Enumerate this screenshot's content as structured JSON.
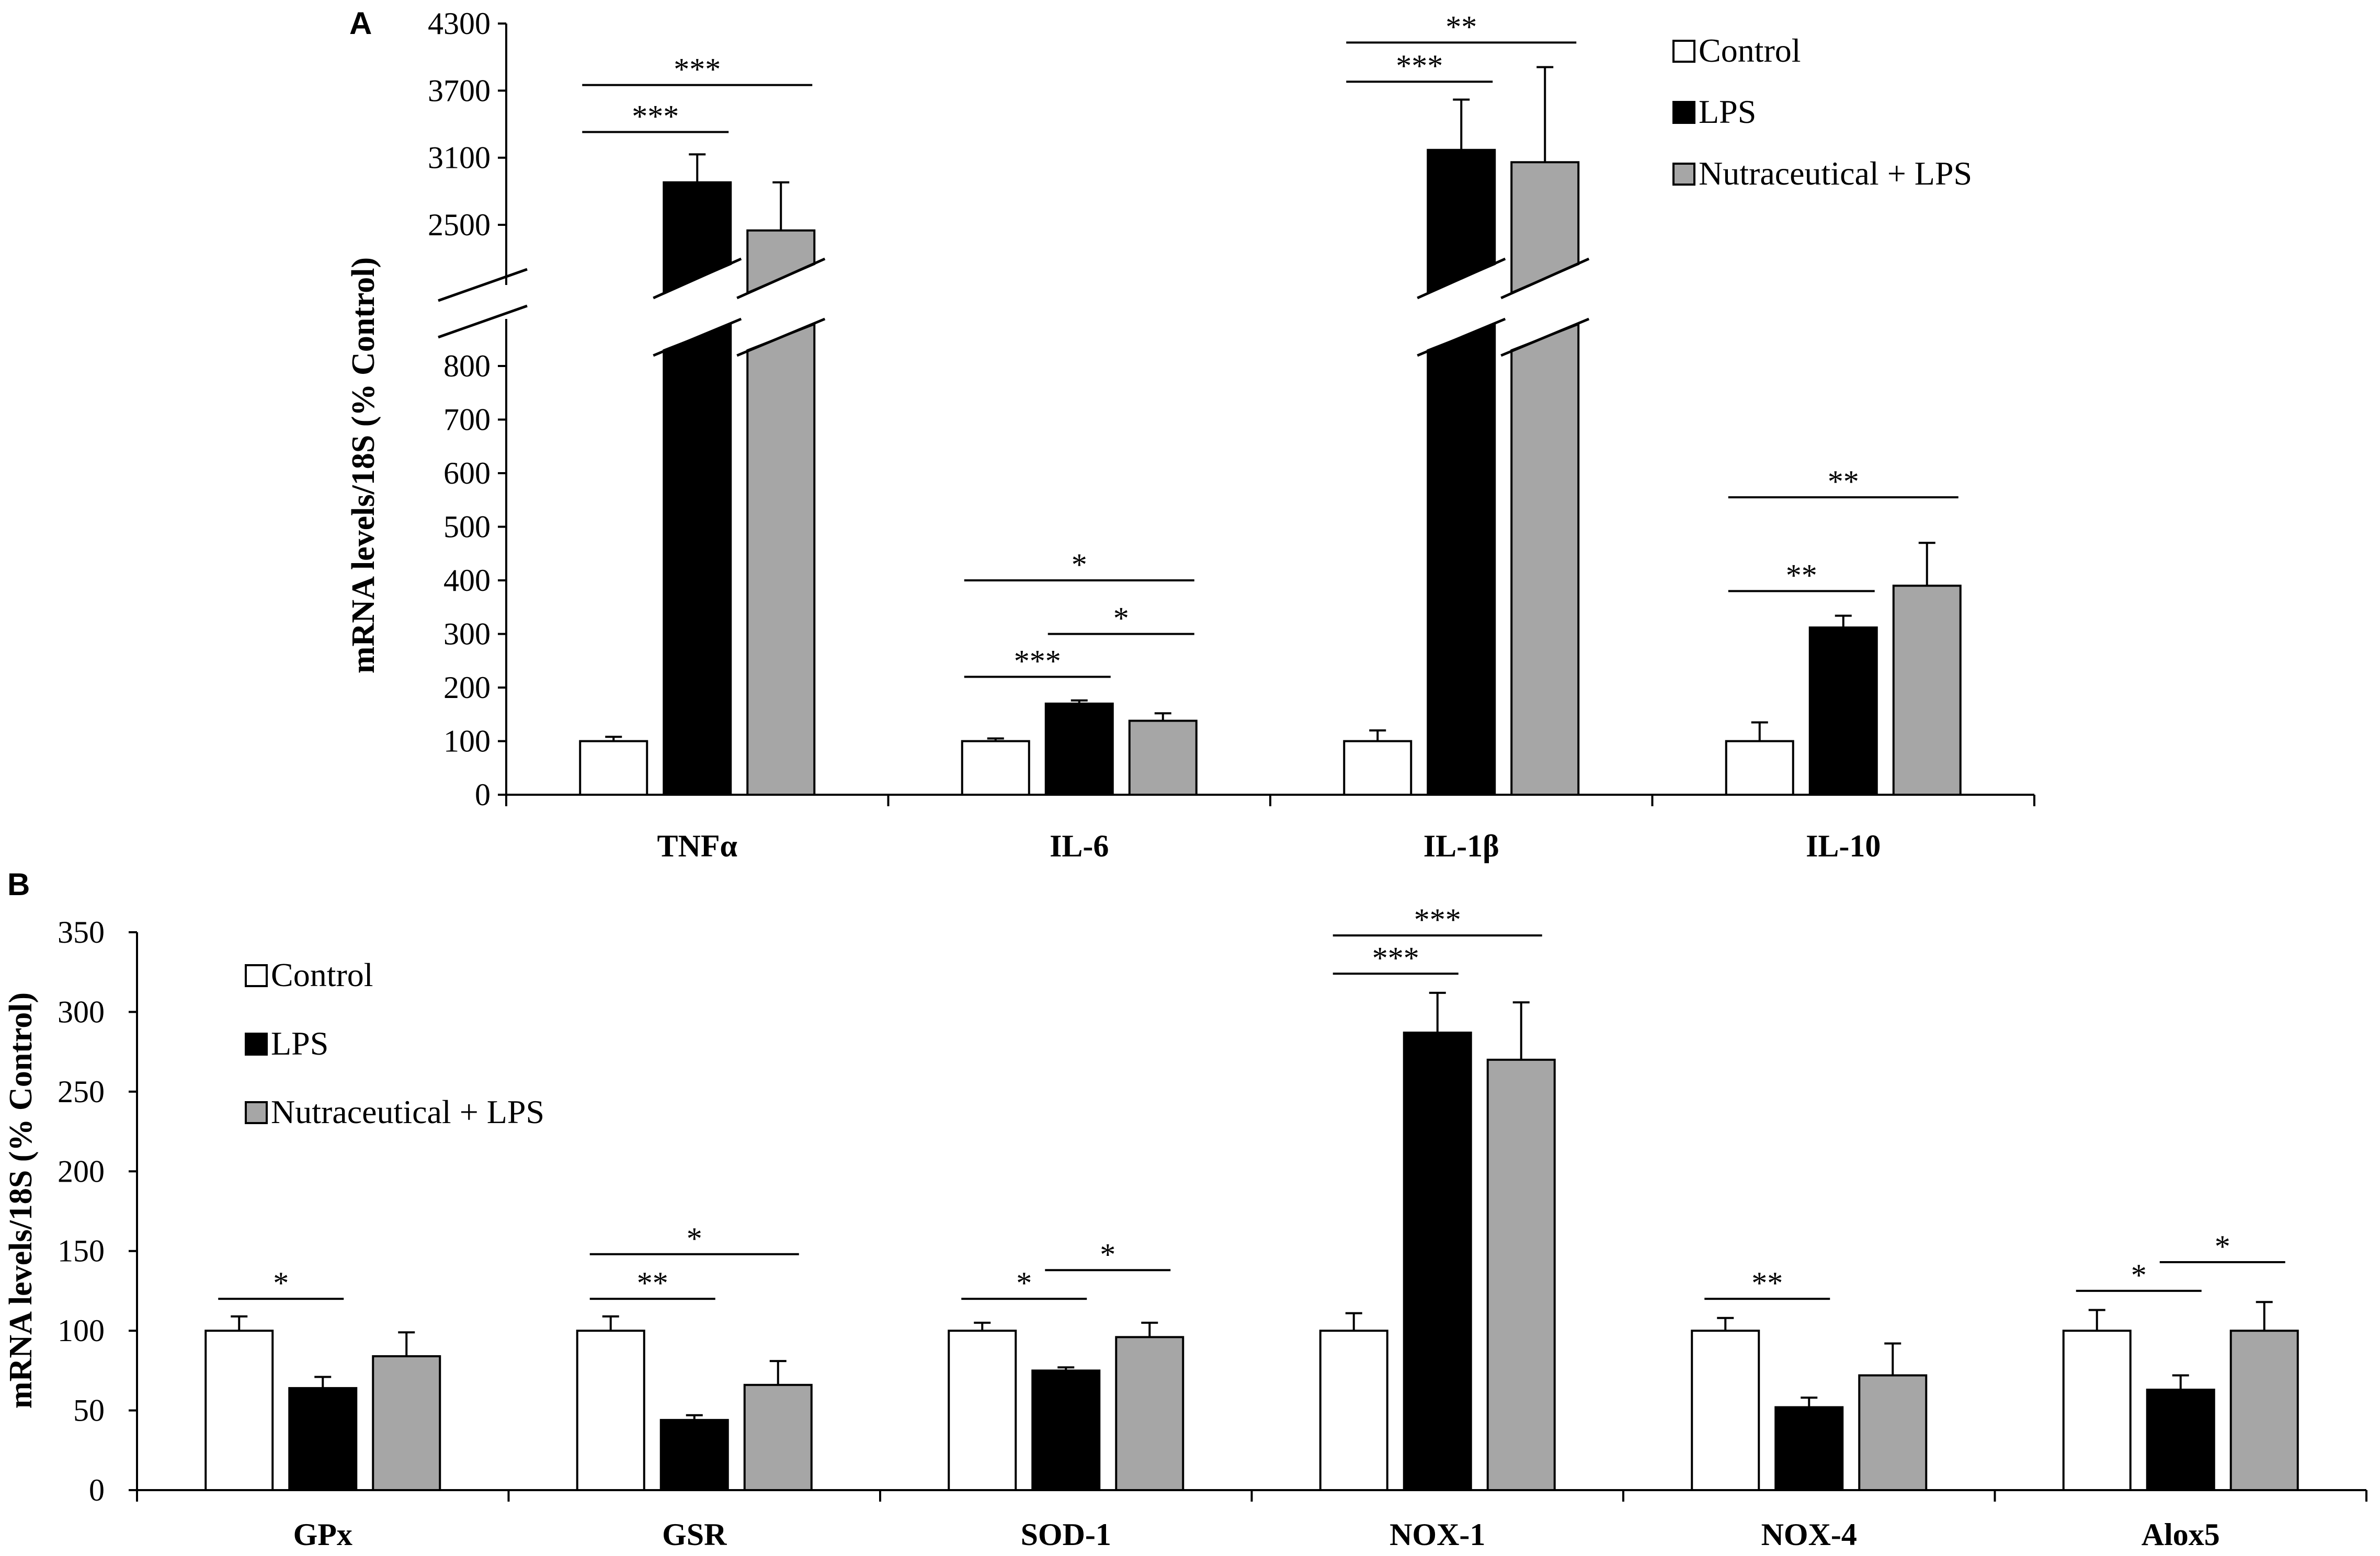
{
  "colors": {
    "control": "#ffffff",
    "lps": "#000000",
    "nutra": "#a6a6a6",
    "stroke": "#000000"
  },
  "legend": [
    "Control",
    "LPS",
    "Nutraceutical + LPS"
  ],
  "chart_data": [
    {
      "panel": "A",
      "type": "bar",
      "ylabel": "mRNA levels/18S (% Control)",
      "categories": [
        "TNFα",
        "IL-6",
        "IL-1β",
        "IL-10"
      ],
      "series": [
        {
          "name": "Control",
          "values": [
            100,
            100,
            100,
            100
          ],
          "errors": [
            8,
            5,
            20,
            35
          ]
        },
        {
          "name": "LPS",
          "values": [
            2880,
            170,
            3170,
            312
          ],
          "errors": [
            250,
            6,
            450,
            22
          ]
        },
        {
          "name": "Nutraceutical + LPS",
          "values": [
            2450,
            138,
            3060,
            390
          ],
          "errors": [
            430,
            14,
            850,
            80
          ]
        }
      ],
      "axis_break": {
        "lower_max": 800,
        "upper_min": 2500,
        "upper_max": 4300
      },
      "yticks_lower": [
        "0",
        "100",
        "200",
        "300",
        "400",
        "500",
        "600",
        "700",
        "800"
      ],
      "yticks_upper": [
        "2500",
        "3100",
        "3700",
        "4300"
      ],
      "significance": [
        {
          "category": 0,
          "from": 0,
          "to": 1,
          "label": "***",
          "y": 3330
        },
        {
          "category": 0,
          "from": 0,
          "to": 2,
          "label": "***",
          "y": 3750
        },
        {
          "category": 1,
          "from": 0,
          "to": 1,
          "label": "***",
          "y": 220
        },
        {
          "category": 1,
          "from": 1,
          "to": 2,
          "label": "*",
          "y": 300
        },
        {
          "category": 1,
          "from": 0,
          "to": 2,
          "label": "*",
          "y": 400
        },
        {
          "category": 2,
          "from": 0,
          "to": 1,
          "label": "***",
          "y": 3780
        },
        {
          "category": 2,
          "from": 0,
          "to": 2,
          "label": "**",
          "y": 4130
        },
        {
          "category": 3,
          "from": 0,
          "to": 1,
          "label": "**",
          "y": 380
        },
        {
          "category": 3,
          "from": 0,
          "to": 2,
          "label": "**",
          "y": 555
        }
      ]
    },
    {
      "panel": "B",
      "type": "bar",
      "ylabel": "mRNA levels/18S (% Control)",
      "categories": [
        "GPx",
        "GSR",
        "SOD-1",
        "NOX-1",
        "NOX-4",
        "Alox5"
      ],
      "ylim": [
        0,
        350
      ],
      "yticks": [
        "0",
        "50",
        "100",
        "150",
        "200",
        "250",
        "300",
        "350"
      ],
      "series": [
        {
          "name": "Control",
          "values": [
            100,
            100,
            100,
            100,
            100,
            100
          ],
          "errors": [
            9,
            9,
            5,
            11,
            8,
            13
          ]
        },
        {
          "name": "LPS",
          "values": [
            64,
            44,
            75,
            287,
            52,
            63
          ],
          "errors": [
            7,
            3,
            2,
            25,
            6,
            9
          ]
        },
        {
          "name": "Nutraceutical + LPS",
          "values": [
            84,
            66,
            96,
            270,
            72,
            100
          ],
          "errors": [
            15,
            15,
            9,
            36,
            20,
            18
          ]
        }
      ],
      "significance": [
        {
          "category": 0,
          "from": 0,
          "to": 1,
          "label": "*",
          "y": 120
        },
        {
          "category": 1,
          "from": 0,
          "to": 1,
          "label": "**",
          "y": 120
        },
        {
          "category": 1,
          "from": 0,
          "to": 2,
          "label": "*",
          "y": 148
        },
        {
          "category": 2,
          "from": 0,
          "to": 1,
          "label": "*",
          "y": 120
        },
        {
          "category": 2,
          "from": 1,
          "to": 2,
          "label": "*",
          "y": 138
        },
        {
          "category": 3,
          "from": 0,
          "to": 1,
          "label": "***",
          "y": 324
        },
        {
          "category": 3,
          "from": 0,
          "to": 2,
          "label": "***",
          "y": 348
        },
        {
          "category": 4,
          "from": 0,
          "to": 1,
          "label": "**",
          "y": 120
        },
        {
          "category": 5,
          "from": 0,
          "to": 1,
          "label": "*",
          "y": 125
        },
        {
          "category": 5,
          "from": 1,
          "to": 2,
          "label": "*",
          "y": 143
        }
      ]
    }
  ],
  "panels": {
    "a_label": "A",
    "b_label": "B"
  }
}
